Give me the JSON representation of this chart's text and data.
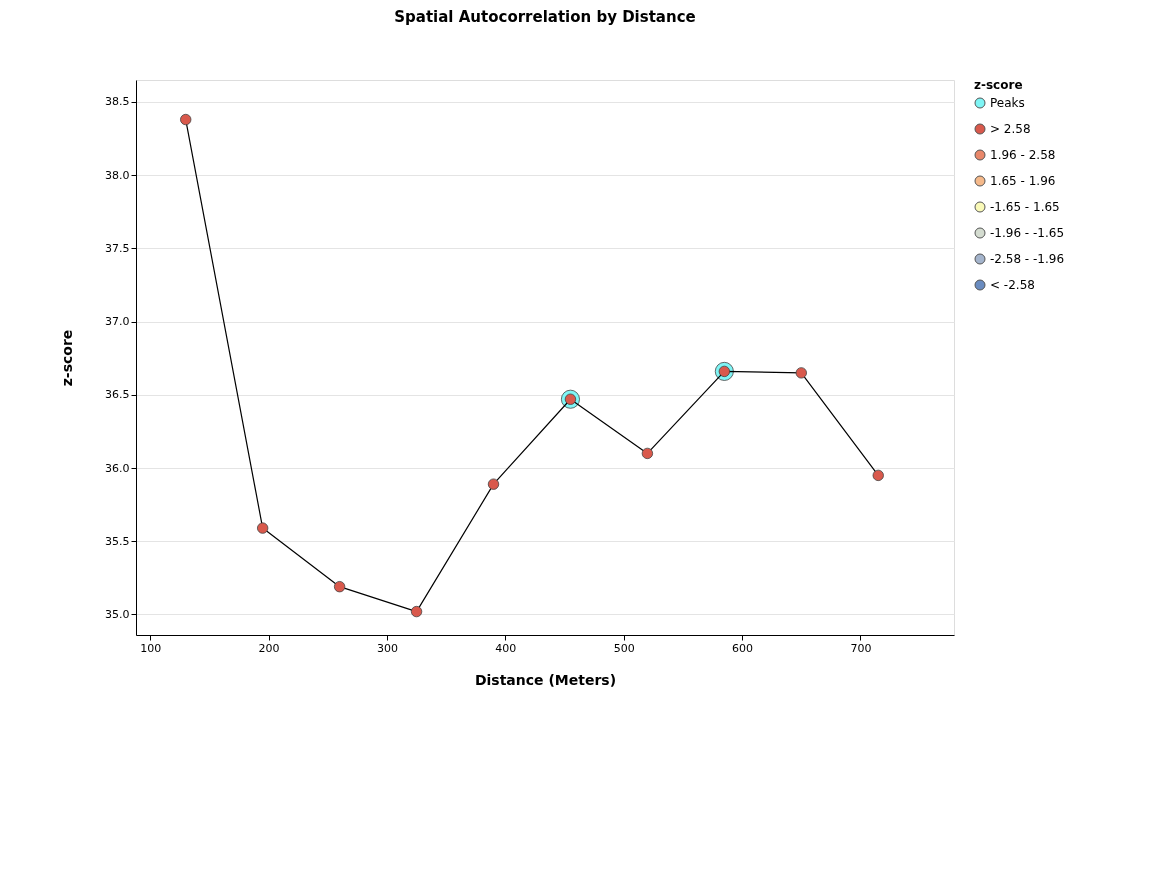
{
  "chart_data": {
    "type": "line",
    "title": "Spatial Autocorrelation by Distance",
    "xlabel": "Distance (Meters)",
    "ylabel": "z-score",
    "legend_title": "z-score",
    "legend": "right",
    "grid": "y",
    "x": [
      130,
      195,
      260,
      325,
      390,
      455,
      520,
      585,
      650,
      715
    ],
    "xlim": [
      88,
      779
    ],
    "xticks": [
      100,
      200,
      300,
      400,
      500,
      600,
      700
    ],
    "ylim": [
      34.86,
      38.65
    ],
    "yticks": [
      {
        "value": 35,
        "label": "35.0"
      },
      35.5,
      {
        "value": 36,
        "label": "36.0"
      },
      36.5,
      {
        "value": 37,
        "label": "37.0"
      },
      37.5,
      {
        "value": 38,
        "label": "38.0"
      },
      38.5
    ],
    "series": [
      {
        "type": "scatter",
        "name": "Peaks",
        "color": "#7ff5f5",
        "marker": "circle",
        "values": [
          null,
          null,
          null,
          null,
          null,
          36.47,
          null,
          36.66,
          null,
          null
        ]
      },
      {
        "color": "#000000",
        "marker": "none",
        "values": [
          38.38,
          35.59,
          35.19,
          35.02,
          35.89,
          36.47,
          36.1,
          36.66,
          36.65,
          35.95
        ]
      },
      {
        "type": "scatter",
        "name": "> 2.58",
        "color": "#d9594c",
        "marker": "circle",
        "values": [
          38.38,
          35.59,
          35.19,
          35.02,
          35.89,
          36.47,
          36.1,
          36.66,
          36.65,
          35.95
        ]
      },
      {
        "type": "scatter",
        "name": "1.96 - 2.58",
        "color": "#e8876a",
        "marker": "circle",
        "values": [
          null,
          null,
          null,
          null,
          null,
          null,
          null,
          null,
          null,
          null
        ]
      },
      {
        "type": "scatter",
        "name": "1.65 - 1.96",
        "color": "#f5b98a",
        "marker": "circle",
        "values": [
          null,
          null,
          null,
          null,
          null,
          null,
          null,
          null,
          null,
          null
        ]
      },
      {
        "type": "scatter",
        "name": "-1.65 - 1.65",
        "color": "#fafab8",
        "marker": "circle",
        "values": [
          null,
          null,
          null,
          null,
          null,
          null,
          null,
          null,
          null,
          null
        ]
      },
      {
        "type": "scatter",
        "name": "-1.96 - -1.65",
        "color": "#d4dcd0",
        "marker": "circle",
        "values": [
          null,
          null,
          null,
          null,
          null,
          null,
          null,
          null,
          null,
          null
        ]
      },
      {
        "type": "scatter",
        "name": "-2.58 - -1.96",
        "color": "#a4b4cc",
        "marker": "circle",
        "values": [
          null,
          null,
          null,
          null,
          null,
          null,
          null,
          null,
          null,
          null
        ]
      },
      {
        "type": "scatter",
        "name": "< -2.58",
        "color": "#6a8cc0",
        "marker": "circle",
        "values": [
          null,
          null,
          null,
          null,
          null,
          null,
          null,
          null,
          null,
          null
        ]
      }
    ]
  }
}
